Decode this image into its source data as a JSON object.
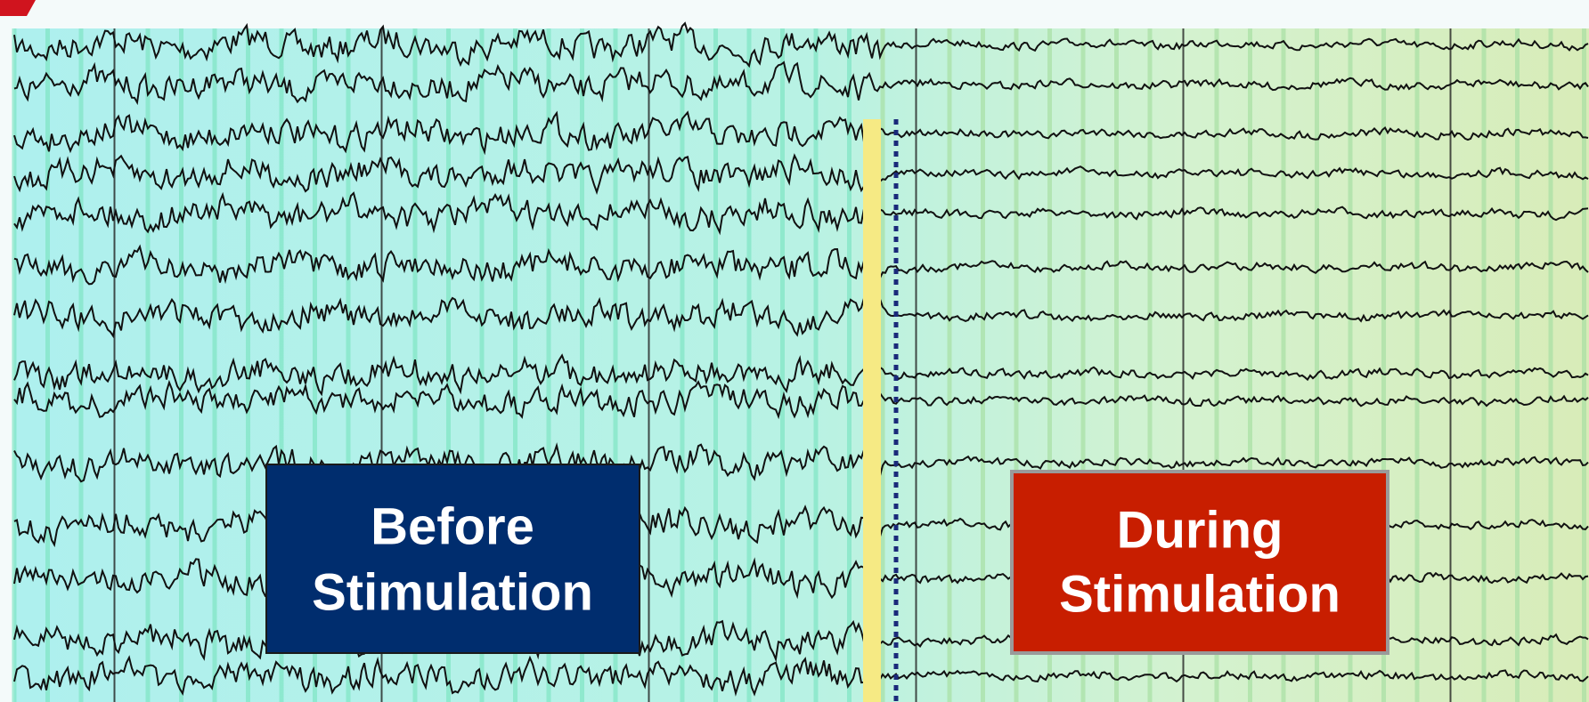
{
  "labels": {
    "before": {
      "line1": "Before",
      "line2": "Stimulation"
    },
    "during": {
      "line1": "During",
      "line2": "Stimulation"
    }
  }
}
